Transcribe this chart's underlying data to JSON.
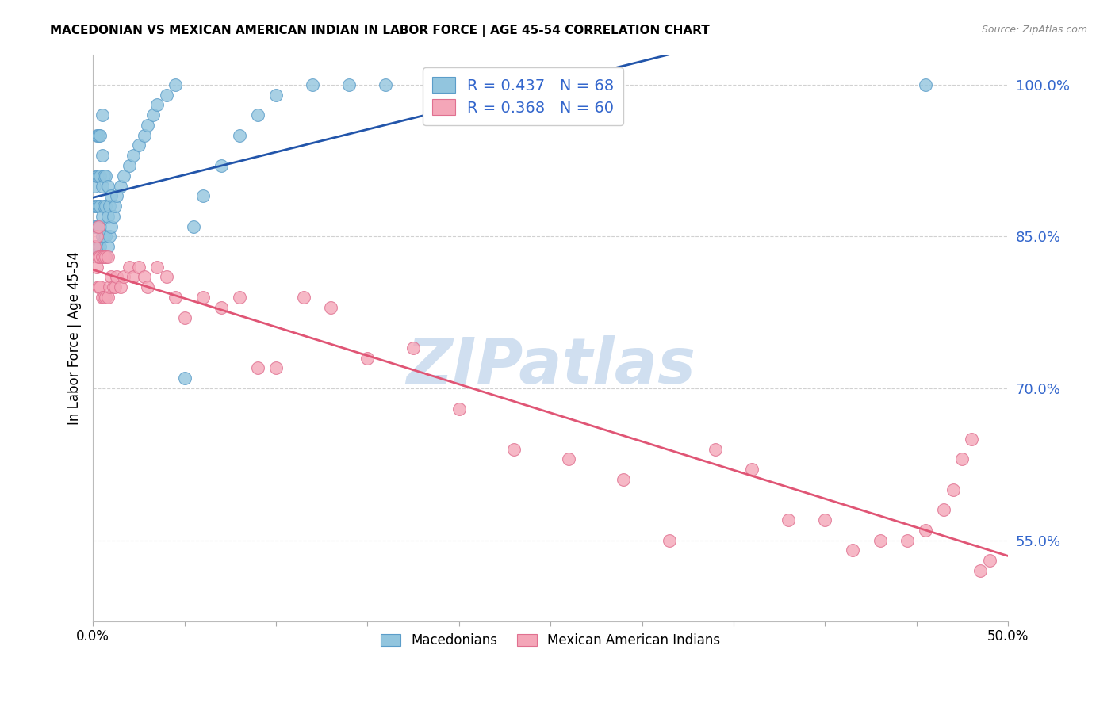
{
  "title": "MACEDONIAN VS MEXICAN AMERICAN INDIAN IN LABOR FORCE | AGE 45-54 CORRELATION CHART",
  "source": "Source: ZipAtlas.com",
  "ylabel": "In Labor Force | Age 45-54",
  "xlim": [
    0.0,
    0.5
  ],
  "ylim": [
    0.47,
    1.03
  ],
  "yticks": [
    0.55,
    0.7,
    0.85,
    1.0
  ],
  "ytick_labels": [
    "55.0%",
    "70.0%",
    "85.0%",
    "100.0%"
  ],
  "blue_color": "#92c5de",
  "blue_edge_color": "#5b9dc9",
  "pink_color": "#f4a6b8",
  "pink_edge_color": "#e07090",
  "blue_line_color": "#2255aa",
  "pink_line_color": "#e05575",
  "watermark_text": "ZIPatlas",
  "watermark_color": "#d0dff0",
  "legend_box_color": "#ffffff",
  "legend_border_color": "#cccccc",
  "blue_R": "0.437",
  "blue_N": "68",
  "pink_R": "0.368",
  "pink_N": "60",
  "label_color": "#3366cc",
  "bottom_legend_blue": "Macedonians",
  "bottom_legend_pink": "Mexican American Indians",
  "blue_x": [
    0.001,
    0.001,
    0.001,
    0.001,
    0.002,
    0.002,
    0.002,
    0.002,
    0.002,
    0.003,
    0.003,
    0.003,
    0.003,
    0.003,
    0.004,
    0.004,
    0.004,
    0.004,
    0.004,
    0.005,
    0.005,
    0.005,
    0.005,
    0.005,
    0.005,
    0.006,
    0.006,
    0.006,
    0.006,
    0.007,
    0.007,
    0.007,
    0.007,
    0.008,
    0.008,
    0.008,
    0.009,
    0.009,
    0.01,
    0.01,
    0.011,
    0.012,
    0.013,
    0.015,
    0.017,
    0.02,
    0.022,
    0.025,
    0.028,
    0.03,
    0.033,
    0.035,
    0.04,
    0.045,
    0.05,
    0.055,
    0.06,
    0.07,
    0.08,
    0.09,
    0.1,
    0.12,
    0.14,
    0.16,
    0.19,
    0.21,
    0.23,
    0.455
  ],
  "blue_y": [
    0.84,
    0.86,
    0.88,
    0.9,
    0.84,
    0.86,
    0.88,
    0.91,
    0.95,
    0.84,
    0.86,
    0.88,
    0.91,
    0.95,
    0.84,
    0.86,
    0.88,
    0.91,
    0.95,
    0.83,
    0.85,
    0.87,
    0.9,
    0.93,
    0.97,
    0.83,
    0.85,
    0.88,
    0.91,
    0.83,
    0.85,
    0.88,
    0.91,
    0.84,
    0.87,
    0.9,
    0.85,
    0.88,
    0.86,
    0.89,
    0.87,
    0.88,
    0.89,
    0.9,
    0.91,
    0.92,
    0.93,
    0.94,
    0.95,
    0.96,
    0.97,
    0.98,
    0.99,
    1.0,
    0.71,
    0.86,
    0.89,
    0.92,
    0.95,
    0.97,
    0.99,
    1.0,
    1.0,
    1.0,
    1.0,
    1.0,
    1.0,
    1.0
  ],
  "pink_x": [
    0.001,
    0.002,
    0.002,
    0.003,
    0.003,
    0.003,
    0.004,
    0.004,
    0.005,
    0.005,
    0.006,
    0.006,
    0.007,
    0.007,
    0.008,
    0.008,
    0.009,
    0.01,
    0.011,
    0.012,
    0.013,
    0.015,
    0.017,
    0.02,
    0.022,
    0.025,
    0.028,
    0.03,
    0.035,
    0.04,
    0.045,
    0.05,
    0.06,
    0.07,
    0.08,
    0.09,
    0.1,
    0.115,
    0.13,
    0.15,
    0.175,
    0.2,
    0.23,
    0.26,
    0.29,
    0.315,
    0.34,
    0.36,
    0.38,
    0.4,
    0.415,
    0.43,
    0.445,
    0.455,
    0.465,
    0.47,
    0.475,
    0.48,
    0.485,
    0.49
  ],
  "pink_y": [
    0.84,
    0.82,
    0.85,
    0.8,
    0.83,
    0.86,
    0.8,
    0.83,
    0.79,
    0.83,
    0.79,
    0.83,
    0.79,
    0.83,
    0.79,
    0.83,
    0.8,
    0.81,
    0.8,
    0.8,
    0.81,
    0.8,
    0.81,
    0.82,
    0.81,
    0.82,
    0.81,
    0.8,
    0.82,
    0.81,
    0.79,
    0.77,
    0.79,
    0.78,
    0.79,
    0.72,
    0.72,
    0.79,
    0.78,
    0.73,
    0.74,
    0.68,
    0.64,
    0.63,
    0.61,
    0.55,
    0.64,
    0.62,
    0.57,
    0.57,
    0.54,
    0.55,
    0.55,
    0.56,
    0.58,
    0.6,
    0.63,
    0.65,
    0.52,
    0.53
  ]
}
